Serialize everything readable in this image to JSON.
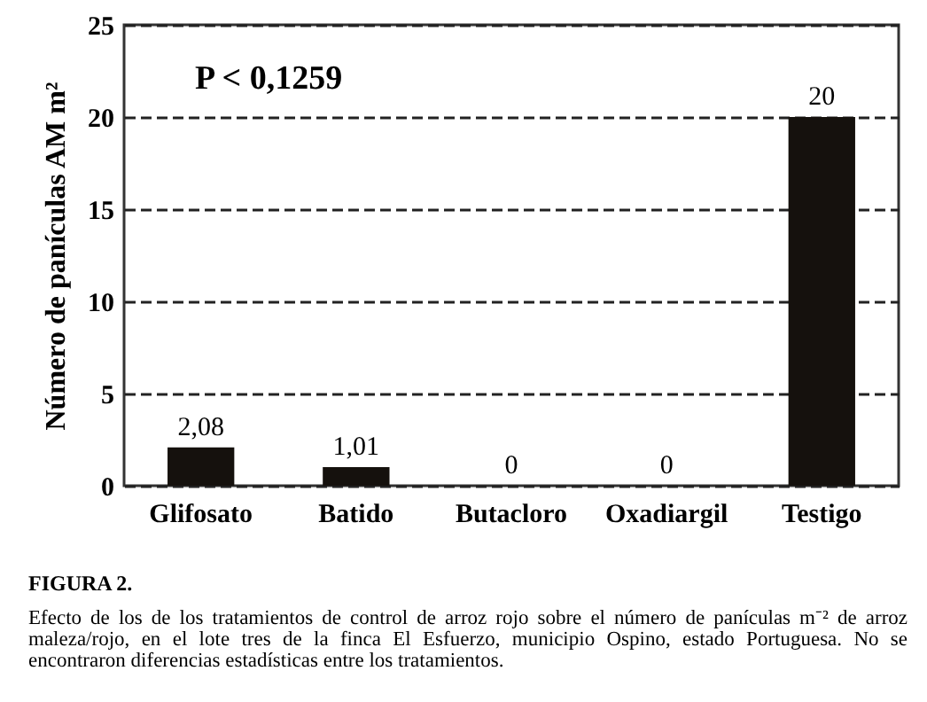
{
  "chart_data": {
    "type": "bar",
    "title": "FIGURA 2.",
    "subtitle": "Efecto de los de los tratamientos de control de arroz rojo sobre el número de panículas m⁻² de arroz maleza/rojo, en el lote tres de la finca El Esfuerzo, municipio Ospino, estado Portuguesa. No se encontraron diferencias estadísticas entre los tratamientos.",
    "ylabel": "Número de panículas AM m²",
    "categories": [
      "Glifosato",
      "Batido",
      "Butacloro",
      "Oxadiargil",
      "Testigo"
    ],
    "values": [
      2.08,
      1.01,
      0,
      0,
      20
    ],
    "value_labels": [
      "2,08",
      "1,01",
      "0",
      "0",
      "20"
    ],
    "color": "#15110d",
    "ylim": [
      0,
      25
    ],
    "yticks": [
      0,
      5,
      10,
      15,
      20,
      25
    ],
    "grid": "y",
    "line_style": "dashed",
    "annotations": [
      "P < 0,1259"
    ]
  }
}
